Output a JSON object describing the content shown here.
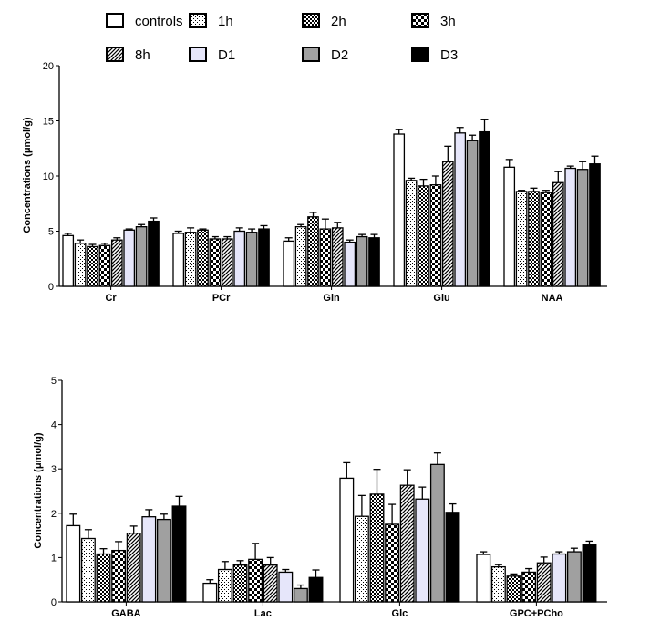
{
  "legend": {
    "entries": [
      {
        "label": "controls",
        "pattern": "white"
      },
      {
        "label": "1h",
        "pattern": "dots"
      },
      {
        "label": "2h",
        "pattern": "dense-check"
      },
      {
        "label": "3h",
        "pattern": "checker"
      },
      {
        "label": "8h",
        "pattern": "diagonal"
      },
      {
        "label": "D1",
        "pattern": "lavender"
      },
      {
        "label": "D2",
        "pattern": "gray"
      },
      {
        "label": "D3",
        "pattern": "black"
      }
    ]
  },
  "colors": {
    "white": "#ffffff",
    "lavender": "#e6e6fa",
    "gray": "#a0a0a0",
    "black": "#000000",
    "stroke": "#000000"
  },
  "chart_data": [
    {
      "type": "bar",
      "ylabel": "Concentrations (μmol/g)",
      "ylim": [
        0,
        20
      ],
      "yticks": [
        "0",
        "5",
        "10",
        "15",
        "20"
      ],
      "categories": [
        "Cr",
        "PCr",
        "Gln",
        "Glu",
        "NAA"
      ],
      "series": [
        {
          "name": "controls",
          "values": [
            4.6,
            4.8,
            4.1,
            13.8,
            10.8
          ],
          "errors": [
            0.2,
            0.2,
            0.3,
            0.4,
            0.7
          ]
        },
        {
          "name": "1h",
          "values": [
            3.9,
            4.9,
            5.4,
            9.6,
            8.6
          ],
          "errors": [
            0.3,
            0.4,
            0.2,
            0.2,
            0.1
          ]
        },
        {
          "name": "2h",
          "values": [
            3.6,
            5.1,
            6.3,
            9.1,
            8.6
          ],
          "errors": [
            0.2,
            0.1,
            0.4,
            0.6,
            0.3
          ]
        },
        {
          "name": "3h",
          "values": [
            3.7,
            4.3,
            5.2,
            9.2,
            8.5
          ],
          "errors": [
            0.2,
            0.2,
            0.9,
            0.8,
            0.2
          ]
        },
        {
          "name": "8h",
          "values": [
            4.2,
            4.3,
            5.3,
            11.3,
            9.4
          ],
          "errors": [
            0.2,
            0.2,
            0.5,
            1.4,
            1.0
          ]
        },
        {
          "name": "D1",
          "values": [
            5.1,
            5.0,
            4.0,
            13.9,
            10.7
          ],
          "errors": [
            0.1,
            0.3,
            0.2,
            0.5,
            0.2
          ]
        },
        {
          "name": "D2",
          "values": [
            5.4,
            4.9,
            4.5,
            13.2,
            10.6
          ],
          "errors": [
            0.2,
            0.3,
            0.2,
            0.5,
            0.7
          ]
        },
        {
          "name": "D3",
          "values": [
            5.9,
            5.2,
            4.4,
            14.0,
            11.1
          ],
          "errors": [
            0.3,
            0.3,
            0.3,
            1.1,
            0.7
          ]
        }
      ]
    },
    {
      "type": "bar",
      "ylabel": "Concentrations (μmol/g)",
      "ylim": [
        0,
        5
      ],
      "yticks": [
        "0",
        "1",
        "2",
        "3",
        "4",
        "5"
      ],
      "categories": [
        "GABA",
        "Lac",
        "Glc",
        "GPC+PCho"
      ],
      "series": [
        {
          "name": "controls",
          "values": [
            1.72,
            0.42,
            2.79,
            1.07
          ],
          "errors": [
            0.26,
            0.08,
            0.35,
            0.06
          ]
        },
        {
          "name": "1h",
          "values": [
            1.43,
            0.73,
            1.93,
            0.79
          ],
          "errors": [
            0.2,
            0.18,
            0.47,
            0.05
          ]
        },
        {
          "name": "2h",
          "values": [
            1.08,
            0.83,
            2.43,
            0.58
          ],
          "errors": [
            0.12,
            0.1,
            0.56,
            0.05
          ]
        },
        {
          "name": "3h",
          "values": [
            1.16,
            0.96,
            1.75,
            0.67
          ],
          "errors": [
            0.2,
            0.36,
            0.45,
            0.08
          ]
        },
        {
          "name": "8h",
          "values": [
            1.55,
            0.83,
            2.63,
            0.88
          ],
          "errors": [
            0.16,
            0.17,
            0.35,
            0.13
          ]
        },
        {
          "name": "D1",
          "values": [
            1.92,
            0.67,
            2.32,
            1.08
          ],
          "errors": [
            0.16,
            0.06,
            0.27,
            0.05
          ]
        },
        {
          "name": "D2",
          "values": [
            1.86,
            0.3,
            3.1,
            1.13
          ],
          "errors": [
            0.12,
            0.08,
            0.26,
            0.08
          ]
        },
        {
          "name": "D3",
          "values": [
            2.16,
            0.55,
            2.02,
            1.3
          ],
          "errors": [
            0.22,
            0.17,
            0.19,
            0.07
          ]
        }
      ]
    }
  ]
}
